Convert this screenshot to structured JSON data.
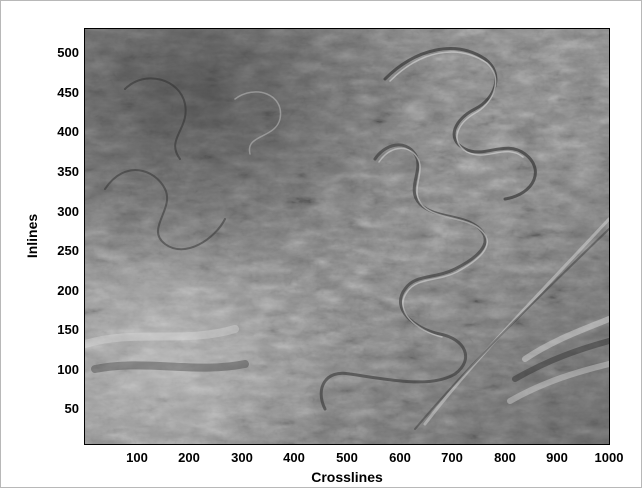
{
  "figure": {
    "xlabel": "Crosslines",
    "ylabel": "Inlines",
    "x_ticks": [
      "100",
      "200",
      "300",
      "400",
      "500",
      "600",
      "700",
      "800",
      "900",
      "1000"
    ],
    "y_ticks": [
      "500",
      "450",
      "400",
      "350",
      "300",
      "250",
      "200",
      "150",
      "100",
      "50"
    ],
    "xlim": [
      0,
      1000
    ],
    "ylim": [
      0,
      525
    ],
    "colormap": "grayscale"
  }
}
